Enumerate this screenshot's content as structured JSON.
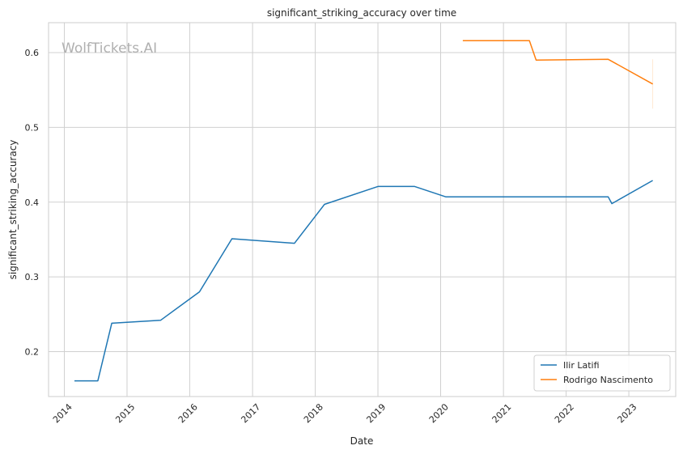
{
  "watermark": "WolfTickets.AI",
  "chart_data": {
    "type": "line",
    "title": "significant_striking_accuracy over time",
    "xlabel": "Date",
    "ylabel": "significant_striking_accuracy",
    "x_range": [
      "2013-10-01",
      "2023-10-01"
    ],
    "ylim": [
      0.14,
      0.64
    ],
    "x_ticks": [
      "2014",
      "2015",
      "2016",
      "2017",
      "2018",
      "2019",
      "2020",
      "2021",
      "2022",
      "2023"
    ],
    "y_ticks": [
      "0.2",
      "0.3",
      "0.4",
      "0.5",
      "0.6"
    ],
    "grid": true,
    "legend_position": "lower-right",
    "series": [
      {
        "name": "Ilir Latifi",
        "color": "#1f77b4",
        "points": [
          [
            "2014-03-01",
            0.161
          ],
          [
            "2014-07-15",
            0.161
          ],
          [
            "2014-10-04",
            0.238
          ],
          [
            "2015-07-15",
            0.242
          ],
          [
            "2016-02-27",
            0.28
          ],
          [
            "2016-09-03",
            0.351
          ],
          [
            "2017-09-02",
            0.345
          ],
          [
            "2018-02-24",
            0.397
          ],
          [
            "2019-01-01",
            0.421
          ],
          [
            "2019-08-03",
            0.421
          ],
          [
            "2020-02-01",
            0.407
          ],
          [
            "2021-06-01",
            0.407
          ],
          [
            "2022-09-03",
            0.407
          ],
          [
            "2022-09-24",
            0.398
          ],
          [
            "2023-05-20",
            0.429
          ]
        ]
      },
      {
        "name": "Rodrigo Nascimento",
        "color": "#ff7f0e",
        "points": [
          [
            "2020-05-09",
            0.616
          ],
          [
            "2021-06-01",
            0.616
          ],
          [
            "2021-07-10",
            0.59
          ],
          [
            "2022-09-03",
            0.591
          ],
          [
            "2023-05-20",
            0.558
          ]
        ]
      }
    ]
  }
}
